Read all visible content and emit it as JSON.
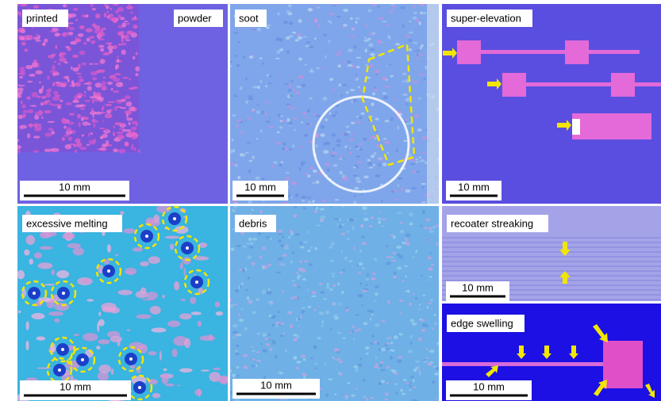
{
  "panels": [
    {
      "labels": [
        "printed",
        "powder"
      ],
      "scale_bar": "10 mm"
    },
    {
      "labels": [
        "soot"
      ],
      "scale_bar": "10 mm"
    },
    {
      "labels": [
        "super-elevation"
      ],
      "scale_bar": "10 mm"
    },
    {
      "labels": [
        "excessive melting"
      ],
      "scale_bar": "10 mm"
    },
    {
      "labels": [
        "debris"
      ],
      "scale_bar": "10 mm"
    },
    {
      "labels": [
        "recoater streaking"
      ],
      "scale_bar": "10 mm"
    },
    {
      "labels": [
        "edge swelling"
      ],
      "scale_bar": "10 mm"
    }
  ]
}
